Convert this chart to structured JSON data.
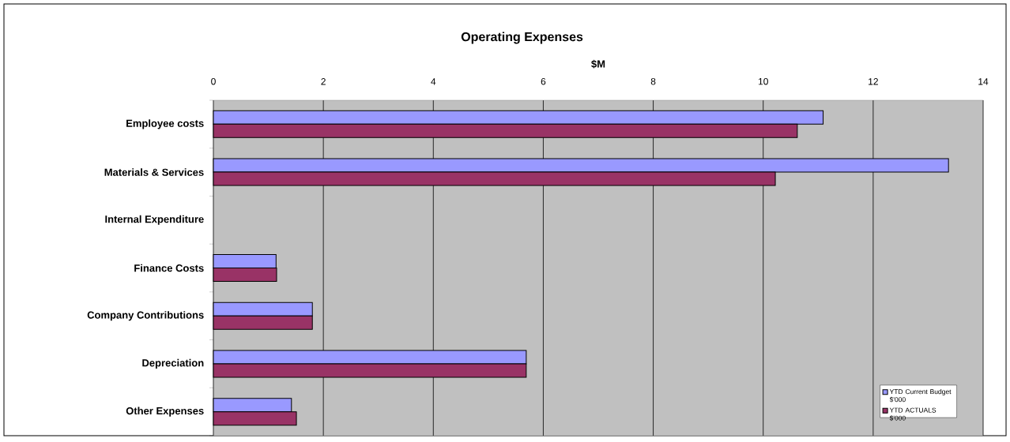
{
  "chart_data": {
    "type": "bar",
    "orientation": "horizontal",
    "title": "Operating Expenses",
    "xlabel": "$M",
    "categories": [
      "Employee costs",
      "Materials & Services",
      "Internal Expenditure",
      "Finance Costs",
      "Company Contributions",
      "Depreciation",
      "Other Expenses"
    ],
    "series": [
      {
        "name": "YTD Current Budget $'000",
        "color": "#9999ff",
        "values": [
          11.09,
          13.37,
          null,
          1.14,
          1.8,
          5.69,
          1.42
        ]
      },
      {
        "name": "YTD ACTUALS $'000",
        "color": "#993366",
        "values": [
          10.62,
          10.22,
          null,
          1.15,
          1.8,
          5.69,
          1.51
        ]
      }
    ],
    "xlim": [
      0,
      14
    ],
    "xticks": [
      0,
      2,
      4,
      6,
      8,
      10,
      12,
      14
    ],
    "grid": "x",
    "legend": "bottom right"
  }
}
